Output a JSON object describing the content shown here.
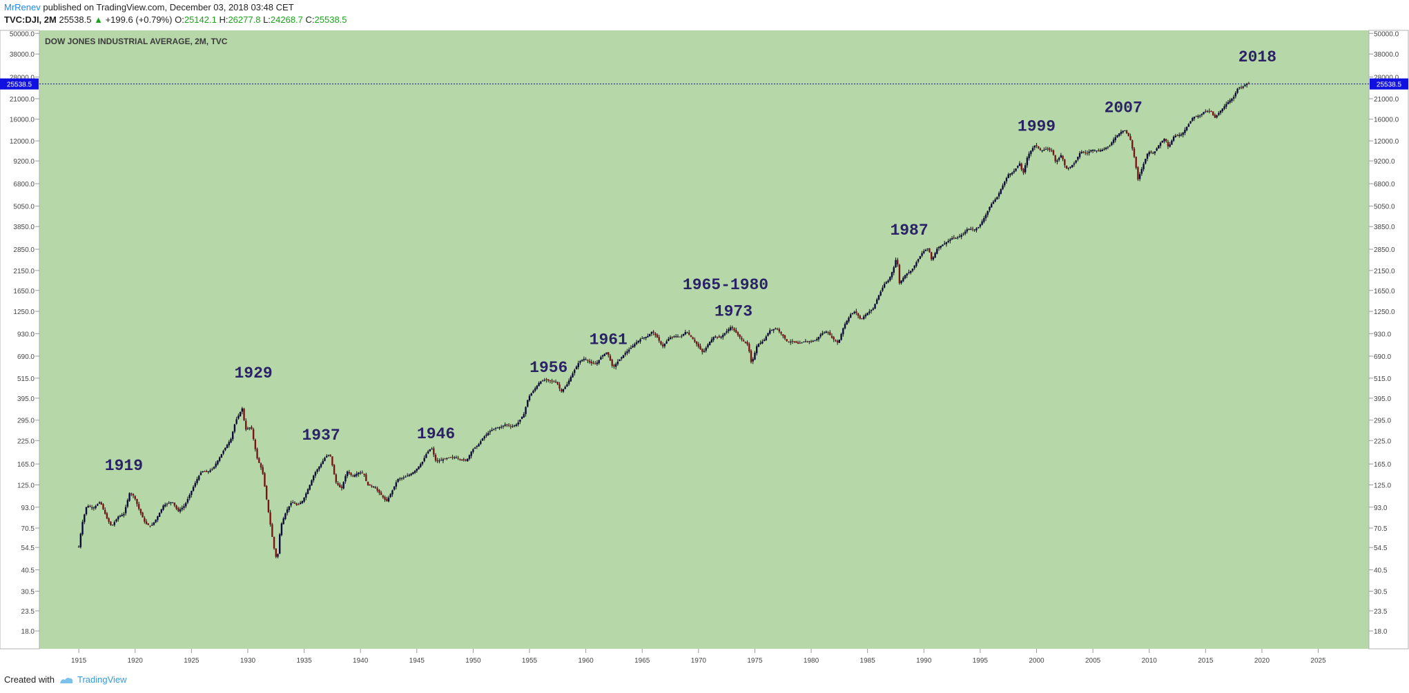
{
  "header": {
    "username": "MrRenev",
    "published_text": "published on TradingView.com, December 03, 2018 03:48 CET",
    "symbol": "TVC:DJI, 2M",
    "last": "25538.5",
    "change": "+199.6 (+0.79%)",
    "open_label": "O:",
    "open": "25142.1",
    "high_label": "H:",
    "high": "26277.8",
    "low_label": "L:",
    "low": "24268.7",
    "close_label": "C:",
    "close": "25538.5"
  },
  "footer": {
    "created_with": "Created with",
    "brand": "TradingView"
  },
  "colors": {
    "plot_bg": "#b6d7a8",
    "candle_up": "#0a0a3c",
    "candle_down": "#7a1414",
    "annotation": "#2a2266",
    "price_line": "#1010c8",
    "price_badge": "#1010e0"
  },
  "chart_data": {
    "type": "candlestick",
    "title": "DOW JONES INDUSTRIAL AVERAGE, 2M, TVC",
    "scale": "logarithmic",
    "y_ticks": [
      "50000.0",
      "38000.0",
      "28000.0",
      "21000.0",
      "16000.0",
      "12000.0",
      "9200.0",
      "6800.0",
      "5050.0",
      "3850.0",
      "2850.0",
      "2150.0",
      "1650.0",
      "1250.0",
      "930.0",
      "690.0",
      "515.0",
      "395.0",
      "295.0",
      "225.0",
      "165.0",
      "125.0",
      "93.0",
      "70.5",
      "54.5",
      "40.5",
      "30.5",
      "23.5",
      "18.0"
    ],
    "x_ticks": [
      "1915",
      "1920",
      "1925",
      "1930",
      "1935",
      "1940",
      "1945",
      "1950",
      "1955",
      "1960",
      "1965",
      "1970",
      "1975",
      "1980",
      "1985",
      "1990",
      "1995",
      "2000",
      "2005",
      "2010",
      "2015",
      "2020",
      "2025"
    ],
    "xlim": [
      1911.5,
      2029.5
    ],
    "ylim": [
      14.2,
      52000
    ],
    "current_price": 25538.5,
    "current_price_label": "25538.5",
    "series_points": [
      [
        1915.0,
        55
      ],
      [
        1915.3,
        75
      ],
      [
        1915.7,
        95
      ],
      [
        1916.3,
        92
      ],
      [
        1916.9,
        100
      ],
      [
        1917.5,
        80
      ],
      [
        1917.9,
        72
      ],
      [
        1918.5,
        82
      ],
      [
        1919.0,
        85
      ],
      [
        1919.5,
        112
      ],
      [
        1919.9,
        108
      ],
      [
        1920.3,
        92
      ],
      [
        1920.9,
        75
      ],
      [
        1921.4,
        72
      ],
      [
        1921.9,
        80
      ],
      [
        1922.5,
        95
      ],
      [
        1922.9,
        98
      ],
      [
        1923.3,
        100
      ],
      [
        1923.8,
        88
      ],
      [
        1924.4,
        95
      ],
      [
        1924.9,
        112
      ],
      [
        1925.5,
        135
      ],
      [
        1925.9,
        150
      ],
      [
        1926.4,
        148
      ],
      [
        1926.9,
        155
      ],
      [
        1927.5,
        180
      ],
      [
        1927.9,
        200
      ],
      [
        1928.5,
        230
      ],
      [
        1928.9,
        290
      ],
      [
        1929.5,
        345
      ],
      [
        1929.8,
        260
      ],
      [
        1930.3,
        270
      ],
      [
        1930.8,
        180
      ],
      [
        1931.3,
        150
      ],
      [
        1931.8,
        90
      ],
      [
        1932.3,
        55
      ],
      [
        1932.6,
        45
      ],
      [
        1932.9,
        72
      ],
      [
        1933.4,
        88
      ],
      [
        1933.9,
        100
      ],
      [
        1934.4,
        95
      ],
      [
        1934.9,
        102
      ],
      [
        1935.5,
        125
      ],
      [
        1935.9,
        145
      ],
      [
        1936.5,
        165
      ],
      [
        1936.9,
        182
      ],
      [
        1937.3,
        188
      ],
      [
        1937.8,
        130
      ],
      [
        1938.3,
        118
      ],
      [
        1938.8,
        150
      ],
      [
        1939.3,
        140
      ],
      [
        1939.9,
        148
      ],
      [
        1940.3,
        145
      ],
      [
        1940.6,
        125
      ],
      [
        1941.2,
        122
      ],
      [
        1941.8,
        110
      ],
      [
        1942.3,
        100
      ],
      [
        1942.8,
        115
      ],
      [
        1943.3,
        135
      ],
      [
        1943.9,
        138
      ],
      [
        1944.5,
        145
      ],
      [
        1944.9,
        152
      ],
      [
        1945.5,
        170
      ],
      [
        1945.9,
        192
      ],
      [
        1946.3,
        205
      ],
      [
        1946.7,
        170
      ],
      [
        1947.3,
        175
      ],
      [
        1947.9,
        180
      ],
      [
        1948.5,
        180
      ],
      [
        1948.9,
        175
      ],
      [
        1949.4,
        172
      ],
      [
        1949.9,
        198
      ],
      [
        1950.5,
        215
      ],
      [
        1950.9,
        235
      ],
      [
        1951.5,
        255
      ],
      [
        1951.9,
        265
      ],
      [
        1952.5,
        270
      ],
      [
        1952.9,
        280
      ],
      [
        1953.4,
        270
      ],
      [
        1953.9,
        280
      ],
      [
        1954.5,
        320
      ],
      [
        1954.9,
        400
      ],
      [
        1955.5,
        450
      ],
      [
        1955.9,
        490
      ],
      [
        1956.4,
        505
      ],
      [
        1956.9,
        495
      ],
      [
        1957.4,
        490
      ],
      [
        1957.8,
        430
      ],
      [
        1958.3,
        470
      ],
      [
        1958.9,
        560
      ],
      [
        1959.4,
        640
      ],
      [
        1959.9,
        670
      ],
      [
        1960.4,
        630
      ],
      [
        1960.9,
        620
      ],
      [
        1961.4,
        690
      ],
      [
        1961.9,
        730
      ],
      [
        1962.4,
        590
      ],
      [
        1962.9,
        650
      ],
      [
        1963.5,
        720
      ],
      [
        1963.9,
        760
      ],
      [
        1964.5,
        830
      ],
      [
        1964.9,
        870
      ],
      [
        1965.5,
        900
      ],
      [
        1965.9,
        960
      ],
      [
        1966.4,
        870
      ],
      [
        1966.8,
        780
      ],
      [
        1967.4,
        880
      ],
      [
        1967.9,
        900
      ],
      [
        1968.4,
        890
      ],
      [
        1968.9,
        960
      ],
      [
        1969.4,
        880
      ],
      [
        1969.9,
        800
      ],
      [
        1970.4,
        720
      ],
      [
        1970.9,
        820
      ],
      [
        1971.4,
        900
      ],
      [
        1971.9,
        880
      ],
      [
        1972.5,
        960
      ],
      [
        1972.9,
        1020
      ],
      [
        1973.4,
        930
      ],
      [
        1973.9,
        850
      ],
      [
        1974.4,
        800
      ],
      [
        1974.7,
        620
      ],
      [
        1975.2,
        800
      ],
      [
        1975.8,
        850
      ],
      [
        1976.3,
        970
      ],
      [
        1976.9,
        1000
      ],
      [
        1977.4,
        920
      ],
      [
        1977.9,
        830
      ],
      [
        1978.4,
        840
      ],
      [
        1978.9,
        810
      ],
      [
        1979.4,
        840
      ],
      [
        1979.9,
        840
      ],
      [
        1980.4,
        850
      ],
      [
        1980.9,
        930
      ],
      [
        1981.4,
        960
      ],
      [
        1981.9,
        870
      ],
      [
        1982.4,
        820
      ],
      [
        1982.9,
        1030
      ],
      [
        1983.5,
        1200
      ],
      [
        1983.9,
        1250
      ],
      [
        1984.4,
        1120
      ],
      [
        1984.9,
        1210
      ],
      [
        1985.5,
        1300
      ],
      [
        1985.9,
        1500
      ],
      [
        1986.5,
        1800
      ],
      [
        1986.9,
        1900
      ],
      [
        1987.4,
        2300
      ],
      [
        1987.6,
        2650
      ],
      [
        1987.8,
        1800
      ],
      [
        1988.4,
        2050
      ],
      [
        1988.9,
        2150
      ],
      [
        1989.5,
        2500
      ],
      [
        1989.9,
        2750
      ],
      [
        1990.4,
        2900
      ],
      [
        1990.7,
        2450
      ],
      [
        1991.2,
        2900
      ],
      [
        1991.9,
        3100
      ],
      [
        1992.5,
        3300
      ],
      [
        1992.9,
        3300
      ],
      [
        1993.5,
        3500
      ],
      [
        1993.9,
        3750
      ],
      [
        1994.5,
        3700
      ],
      [
        1994.9,
        3850
      ],
      [
        1995.5,
        4500
      ],
      [
        1995.9,
        5100
      ],
      [
        1996.5,
        5700
      ],
      [
        1996.9,
        6450
      ],
      [
        1997.5,
        7700
      ],
      [
        1997.9,
        7900
      ],
      [
        1998.5,
        8900
      ],
      [
        1998.8,
        7700
      ],
      [
        1999.2,
        9800
      ],
      [
        1999.6,
        10800
      ],
      [
        1999.9,
        11400
      ],
      [
        2000.4,
        10500
      ],
      [
        2000.9,
        10800
      ],
      [
        2001.4,
        10500
      ],
      [
        2001.7,
        9000
      ],
      [
        2002.2,
        10000
      ],
      [
        2002.6,
        8300
      ],
      [
        2002.9,
        8400
      ],
      [
        2003.4,
        9000
      ],
      [
        2003.9,
        10400
      ],
      [
        2004.5,
        10200
      ],
      [
        2004.9,
        10700
      ],
      [
        2005.5,
        10500
      ],
      [
        2005.9,
        10700
      ],
      [
        2006.5,
        11300
      ],
      [
        2006.9,
        12400
      ],
      [
        2007.4,
        13400
      ],
      [
        2007.8,
        13900
      ],
      [
        2008.3,
        12400
      ],
      [
        2008.7,
        9500
      ],
      [
        2009.0,
        7200
      ],
      [
        2009.4,
        8500
      ],
      [
        2009.9,
        10400
      ],
      [
        2010.4,
        10200
      ],
      [
        2010.9,
        11500
      ],
      [
        2011.4,
        12500
      ],
      [
        2011.7,
        11000
      ],
      [
        2012.2,
        12800
      ],
      [
        2012.9,
        13100
      ],
      [
        2013.5,
        15000
      ],
      [
        2013.9,
        16500
      ],
      [
        2014.5,
        16800
      ],
      [
        2014.9,
        17800
      ],
      [
        2015.5,
        17700
      ],
      [
        2015.8,
        16200
      ],
      [
        2016.2,
        17500
      ],
      [
        2016.9,
        19800
      ],
      [
        2017.5,
        21500
      ],
      [
        2017.9,
        24500
      ],
      [
        2018.2,
        24200
      ],
      [
        2018.6,
        25600
      ],
      [
        2018.9,
        25538
      ]
    ],
    "annotations": [
      {
        "label": "1919",
        "year": 1919.0,
        "value": 152
      },
      {
        "label": "1929",
        "year": 1930.5,
        "value": 520
      },
      {
        "label": "1937",
        "year": 1936.5,
        "value": 228
      },
      {
        "label": "1946",
        "year": 1946.7,
        "value": 232
      },
      {
        "label": "1956",
        "year": 1956.7,
        "value": 560
      },
      {
        "label": "1961",
        "year": 1962.0,
        "value": 810
      },
      {
        "label": "1965-1980",
        "year": 1972.4,
        "value": 1680
      },
      {
        "label": "1973",
        "year": 1973.1,
        "value": 1180
      },
      {
        "label": "1987",
        "year": 1988.7,
        "value": 3450
      },
      {
        "label": "1999",
        "year": 2000.0,
        "value": 13700
      },
      {
        "label": "2007",
        "year": 2007.7,
        "value": 17600
      },
      {
        "label": "2018",
        "year": 2019.6,
        "value": 34500
      }
    ]
  }
}
